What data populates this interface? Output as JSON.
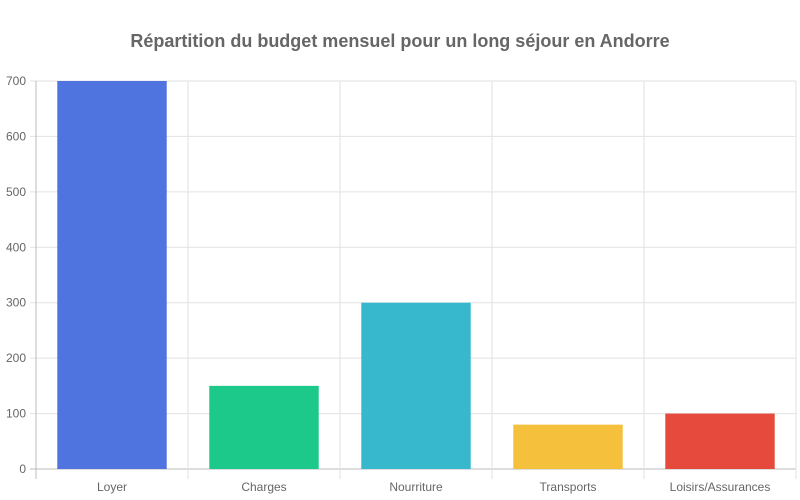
{
  "chart_data": {
    "type": "bar",
    "title": "Répartition du budget mensuel pour un long séjour en Andorre",
    "xlabel": "",
    "ylabel": "",
    "categories": [
      "Loyer",
      "Charges",
      "Nourriture",
      "Transports",
      "Loisirs/Assurances"
    ],
    "values": [
      700,
      150,
      300,
      80,
      100
    ],
    "colors": [
      "#4f73df",
      "#1cc98a",
      "#37b8cc",
      "#f5c03b",
      "#e64a3c"
    ],
    "ylim": [
      0,
      700
    ],
    "yticks": [
      0,
      100,
      200,
      300,
      400,
      500,
      600,
      700
    ],
    "grid": true,
    "legend": "none"
  }
}
